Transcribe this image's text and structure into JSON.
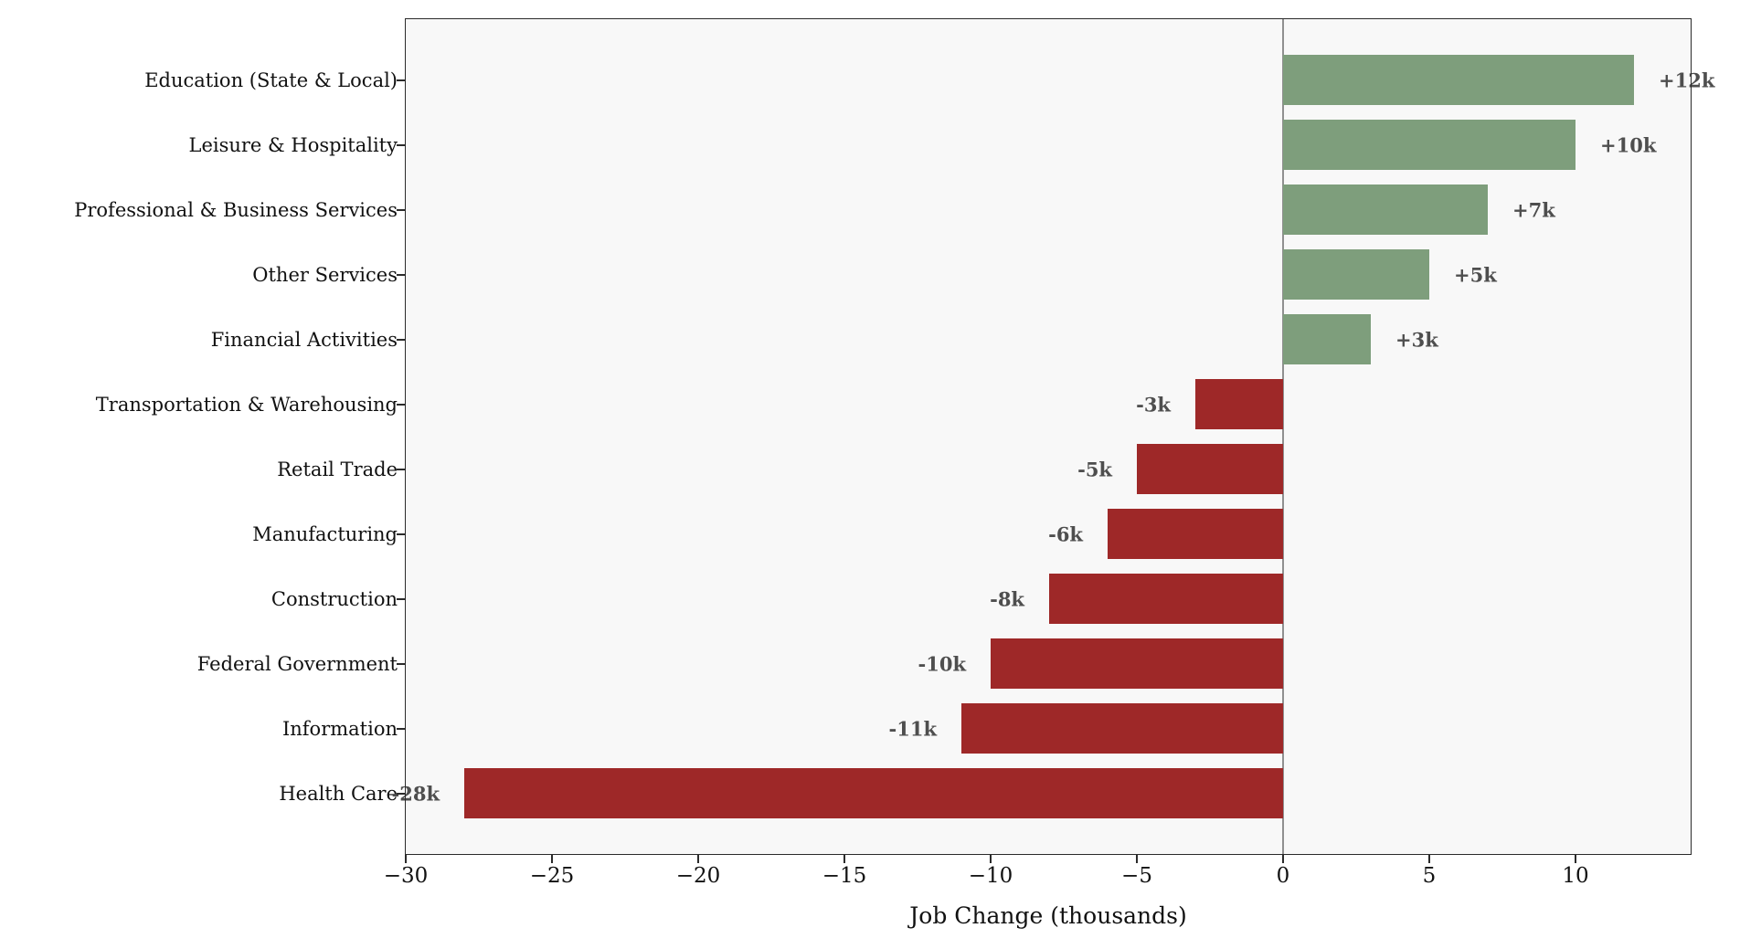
{
  "chart_data": {
    "type": "bar",
    "orientation": "horizontal",
    "title": "",
    "xlabel": "Job Change (thousands)",
    "ylabel": "",
    "xlim": [
      -30,
      14
    ],
    "grid": false,
    "legend": false,
    "zero_reference_line": true,
    "categories": [
      "Education (State & Local)",
      "Leisure & Hospitality",
      "Professional & Business Services",
      "Other Services",
      "Financial Activities",
      "Transportation & Warehousing",
      "Retail Trade",
      "Manufacturing",
      "Construction",
      "Federal Government",
      "Information",
      "Health Care"
    ],
    "values": [
      12,
      10,
      7,
      5,
      3,
      -3,
      -5,
      -6,
      -8,
      -10,
      -11,
      -28
    ],
    "bar_labels": [
      "+12k",
      "+10k",
      "+7k",
      "+5k",
      "+3k",
      "-3k",
      "-5k",
      "-6k",
      "-8k",
      "-10k",
      "-11k",
      "-28k"
    ],
    "x_ticks": [
      {
        "value": -30,
        "label": "−30"
      },
      {
        "value": -25,
        "label": "−25"
      },
      {
        "value": -20,
        "label": "−20"
      },
      {
        "value": -15,
        "label": "−15"
      },
      {
        "value": -10,
        "label": "−10"
      },
      {
        "value": -5,
        "label": "−5"
      },
      {
        "value": 0,
        "label": "0"
      },
      {
        "value": 5,
        "label": "5"
      },
      {
        "value": 10,
        "label": "10"
      }
    ],
    "colors": {
      "positive_bar": "#7e9e7c",
      "negative_bar": "#9e2828",
      "value_label": "#4e4e4e",
      "plot_background": "#f8f8f8",
      "figure_background": "#ffffff",
      "zero_line": "#909090",
      "spine": "#2b2b2b",
      "text": "#111111"
    }
  }
}
